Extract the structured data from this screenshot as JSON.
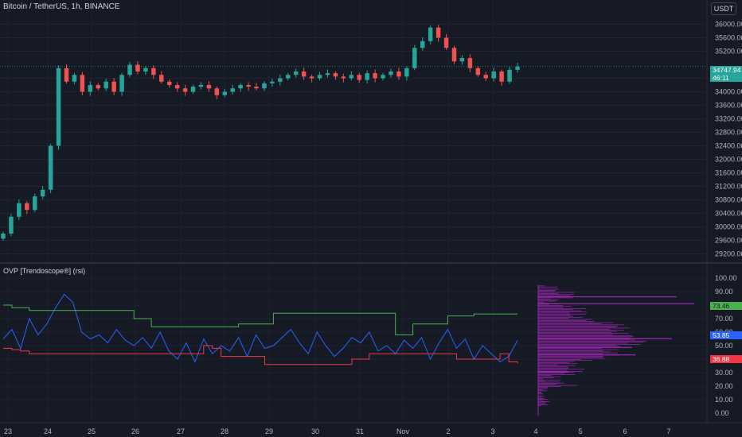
{
  "header": {
    "symbol_title": "Bitcoin / TetherUS, 1h, BINANCE",
    "currency_button": "USDT"
  },
  "indicator": {
    "title": "OVP [Trendoscope®] (rsi)"
  },
  "price_badges": {
    "last_price": "34747.94",
    "countdown": "46:11",
    "upper_band": "73.46",
    "rsi": "53.85",
    "lower_band": "36.88"
  },
  "colors": {
    "background": "#161a25",
    "up": "#26a69a",
    "down": "#ef5350",
    "rsi_line": "#2962ff",
    "upper_band": "#4caf50",
    "lower_band": "#f23645",
    "profile": "#9c27b0"
  },
  "chart_data": [
    {
      "type": "candlestick",
      "title": "Bitcoin / TetherUS, 1h, BINANCE",
      "y_ticks": [
        "36000.00",
        "35600.00",
        "35200.00",
        "34400.00",
        "34000.00",
        "33600.00",
        "33200.00",
        "32800.00",
        "32400.00",
        "32000.00",
        "31600.00",
        "31200.00",
        "30800.00",
        "30400.00",
        "30000.00",
        "29600.00",
        "29200.00"
      ],
      "ylim": [
        29000,
        36200
      ],
      "x_ticks": [
        "23",
        "24",
        "25",
        "26",
        "27",
        "28",
        "29",
        "30",
        "31",
        "Nov",
        "2",
        "3"
      ],
      "close_series": [
        [
          "23",
          29800
        ],
        [
          "23",
          30300
        ],
        [
          "23",
          30700
        ],
        [
          "23",
          30500
        ],
        [
          "23",
          30900
        ],
        [
          "23",
          31100
        ],
        [
          "24",
          32400
        ],
        [
          "24",
          34700
        ],
        [
          "24",
          34300
        ],
        [
          "24",
          34500
        ],
        [
          "24",
          34000
        ],
        [
          "24",
          34200
        ],
        [
          "25",
          34100
        ],
        [
          "25",
          34300
        ],
        [
          "25",
          34000
        ],
        [
          "25",
          34500
        ],
        [
          "25",
          34800
        ],
        [
          "25",
          34600
        ],
        [
          "26",
          34700
        ],
        [
          "26",
          34500
        ],
        [
          "26",
          34300
        ],
        [
          "26",
          34200
        ],
        [
          "26",
          34100
        ],
        [
          "26",
          34000
        ],
        [
          "27",
          34150
        ],
        [
          "27",
          34200
        ],
        [
          "27",
          34100
        ],
        [
          "27",
          33900
        ],
        [
          "27",
          34000
        ],
        [
          "27",
          34100
        ],
        [
          "28",
          34200
        ],
        [
          "28",
          34150
        ],
        [
          "28",
          34100
        ],
        [
          "28",
          34250
        ],
        [
          "28",
          34300
        ],
        [
          "28",
          34400
        ],
        [
          "29",
          34500
        ],
        [
          "29",
          34600
        ],
        [
          "29",
          34450
        ],
        [
          "29",
          34400
        ],
        [
          "29",
          34500
        ],
        [
          "29",
          34550
        ],
        [
          "30",
          34450
        ],
        [
          "30",
          34400
        ],
        [
          "30",
          34500
        ],
        [
          "30",
          34350
        ],
        [
          "30",
          34550
        ],
        [
          "30",
          34400
        ],
        [
          "31",
          34500
        ],
        [
          "31",
          34600
        ],
        [
          "31",
          34450
        ],
        [
          "31",
          34700
        ],
        [
          "31",
          35300
        ],
        [
          "31",
          35500
        ],
        [
          "Nov",
          35900
        ],
        [
          "Nov",
          35600
        ],
        [
          "Nov",
          35300
        ],
        [
          "Nov",
          34900
        ],
        [
          "Nov",
          35000
        ],
        [
          "Nov",
          34700
        ],
        [
          "2",
          34500
        ],
        [
          "2",
          34400
        ],
        [
          "2",
          34600
        ],
        [
          "2",
          34300
        ],
        [
          "2",
          34650
        ],
        [
          "2",
          34747.94
        ]
      ],
      "last_price": 34747.94
    },
    {
      "type": "line",
      "title": "OVP [Trendoscope®] (rsi)",
      "y_ticks": [
        "100.00",
        "90.00",
        "80.00",
        "70.00",
        "60.00",
        "50.00",
        "40.00",
        "30.00",
        "20.00",
        "10.00",
        "0.00"
      ],
      "ylim": [
        0,
        100
      ],
      "x_ticks": [
        "23",
        "24",
        "25",
        "26",
        "27",
        "28",
        "29",
        "30",
        "31",
        "Nov",
        "2",
        "3",
        "4",
        "5",
        "6",
        "7"
      ],
      "series": [
        {
          "values": [
            55,
            62,
            48,
            70,
            58,
            66,
            78,
            88,
            82,
            60,
            55,
            58,
            52,
            62,
            54,
            50,
            56,
            48,
            60,
            46,
            40,
            52,
            38,
            55,
            44,
            50,
            46,
            56,
            42,
            58,
            48,
            50,
            56,
            62,
            52,
            44,
            60,
            50,
            42,
            48,
            56,
            52,
            60,
            46,
            50,
            44,
            54,
            48,
            56,
            40,
            52,
            62,
            48,
            55,
            40,
            50,
            44,
            38,
            42,
            53.85
          ]
        },
        {
          "values": [
            80,
            78,
            78,
            76,
            76,
            76,
            76,
            76,
            76,
            76,
            76,
            76,
            76,
            76,
            76,
            70,
            70,
            64,
            64,
            64,
            64,
            64,
            64,
            64,
            64,
            64,
            64,
            66,
            66,
            66,
            66,
            74,
            74,
            74,
            74,
            74,
            74,
            74,
            74,
            74,
            74,
            74,
            74,
            74,
            74,
            58,
            58,
            66,
            66,
            66,
            66,
            72,
            72,
            72,
            73.46,
            73.46,
            73.46,
            73.46,
            73.46,
            73.46
          ]
        },
        {
          "values": [
            48,
            47,
            46,
            44,
            44,
            44,
            44,
            44,
            44,
            44,
            44,
            44,
            44,
            44,
            44,
            44,
            44,
            44,
            44,
            44,
            44,
            44,
            44,
            50,
            48,
            42,
            42,
            42,
            42,
            42,
            36,
            36,
            36,
            36,
            36,
            36,
            36,
            36,
            36,
            36,
            40,
            40,
            44,
            44,
            44,
            44,
            44,
            44,
            44,
            44,
            44,
            44,
            40,
            40,
            40,
            40,
            40,
            44,
            38,
            36.88
          ]
        }
      ],
      "volume_profile_x_ticks": [
        "4",
        "5",
        "6",
        "7"
      ]
    }
  ]
}
